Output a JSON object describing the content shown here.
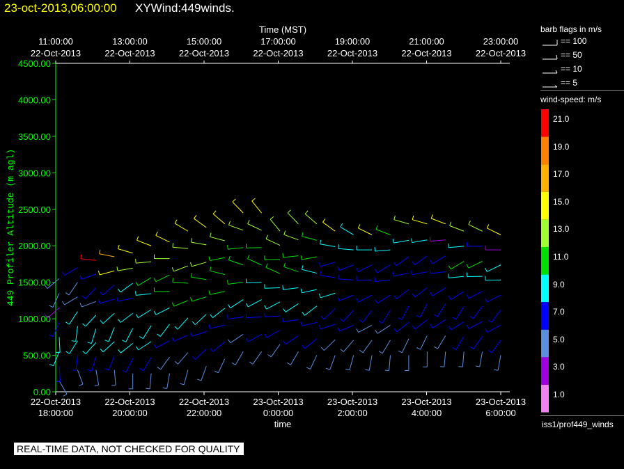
{
  "header": {
    "datetime": "23-oct-2013,06:00:00",
    "plot_name": "XYWind:449winds."
  },
  "banner": "REAL-TIME DATA, NOT CHECKED FOR QUALITY",
  "legend": {
    "flags_title": "barb flags in m/s",
    "flags": [
      {
        "label": "== 100",
        "speed": 100
      },
      {
        "label": "== 50",
        "speed": 50
      },
      {
        "label": "== 10",
        "speed": 10
      },
      {
        "label": "== 5",
        "speed": 5
      }
    ],
    "colorbar_title": "wind-speed: m/s",
    "colorbar": [
      {
        "label": "21.0",
        "color": "#ff0000"
      },
      {
        "label": "19.0",
        "color": "#ff8000"
      },
      {
        "label": "17.0",
        "color": "#ffb000"
      },
      {
        "label": "15.0",
        "color": "#ffff00"
      },
      {
        "label": "13.0",
        "color": "#a0ff30"
      },
      {
        "label": "11.0",
        "color": "#00e000"
      },
      {
        "label": "9.0",
        "color": "#00ffff"
      },
      {
        "label": "7.0",
        "color": "#0000ff"
      },
      {
        "label": "5.0",
        "color": "#5a8fe0"
      },
      {
        "label": "3.0",
        "color": "#a000e0"
      },
      {
        "label": "1.0",
        "color": "#ee82ee"
      }
    ],
    "source": "iss1/prof449_winds"
  },
  "chart_data": {
    "type": "scatter",
    "marker": "wind-barb",
    "xlabel_bottom": "time",
    "xlabel_top": "Time (MST)",
    "ylabel": "449 Profiler Altitude (m agl)",
    "ylim": [
      0,
      4500
    ],
    "yticks": [
      "0.00",
      "500.00",
      "1000.00",
      "1500.00",
      "2000.00",
      "2500.00",
      "3000.00",
      "3500.00",
      "4000.00",
      "4500.00"
    ],
    "xticks_bottom": [
      [
        "22-Oct-2013",
        "18:00:00"
      ],
      [
        "22-Oct-2013",
        "20:00:00"
      ],
      [
        "22-Oct-2013",
        "22:00:00"
      ],
      [
        "23-Oct-2013",
        "0:00:00"
      ],
      [
        "23-Oct-2013",
        "2:00:00"
      ],
      [
        "23-Oct-2013",
        "4:00:00"
      ],
      [
        "23-Oct-2013",
        "6:00:00"
      ]
    ],
    "xticks_top": [
      [
        "11:00:00",
        "22-Oct-2013"
      ],
      [
        "13:00:00",
        "22-Oct-2013"
      ],
      [
        "15:00:00",
        "22-Oct-2013"
      ],
      [
        "17:00:00",
        "22-Oct-2013"
      ],
      [
        "19:00:00",
        "22-Oct-2013"
      ],
      [
        "21:00:00",
        "22-Oct-2013"
      ],
      [
        "23:00:00",
        "22-Oct-2013"
      ]
    ],
    "profiles": [
      {
        "t": 0.0,
        "top": 1550,
        "low": 150,
        "dir": 150,
        "spd": [
          4,
          6,
          9,
          9,
          7,
          3,
          4,
          5
        ]
      },
      {
        "t": 0.5,
        "top": 1700,
        "low": 300,
        "dir": 160,
        "spd": [
          5,
          6,
          9,
          9,
          8,
          4,
          5,
          6
        ]
      },
      {
        "t": 1.0,
        "top": 1800,
        "low": 300,
        "dir": 170,
        "spd": [
          5,
          7,
          9,
          9,
          8,
          5,
          6,
          7,
          20
        ]
      },
      {
        "t": 1.5,
        "top": 1850,
        "low": 300,
        "dir": 175,
        "spd": [
          5,
          7,
          8,
          9,
          9,
          6,
          7,
          14,
          17
        ]
      },
      {
        "t": 2.0,
        "top": 1900,
        "low": 250,
        "dir": 180,
        "spd": [
          4,
          6,
          8,
          9,
          9,
          7,
          9,
          13,
          15
        ]
      },
      {
        "t": 2.5,
        "top": 2000,
        "low": 250,
        "dir": 185,
        "spd": [
          4,
          6,
          8,
          8,
          9,
          9,
          11,
          12,
          15
        ]
      },
      {
        "t": 3.0,
        "top": 2050,
        "low": 250,
        "dir": 190,
        "spd": [
          4,
          5,
          7,
          8,
          9,
          10,
          11,
          13,
          15
        ]
      },
      {
        "t": 3.5,
        "top": 2200,
        "low": 300,
        "dir": 195,
        "spd": [
          5,
          5,
          7,
          9,
          10,
          11,
          12,
          13,
          15
        ]
      },
      {
        "t": 4.0,
        "top": 2250,
        "low": 350,
        "dir": 200,
        "spd": [
          5,
          6,
          7,
          9,
          10,
          11,
          12,
          13,
          14
        ]
      },
      {
        "t": 4.5,
        "top": 2300,
        "low": 450,
        "dir": 205,
        "spd": [
          5,
          6,
          7,
          9,
          10,
          11,
          11,
          12,
          14
        ]
      },
      {
        "t": 5.0,
        "top": 2450,
        "low": 550,
        "dir": 210,
        "spd": [
          5,
          5,
          7,
          9,
          10,
          11,
          11,
          12,
          15
        ]
      },
      {
        "t": 5.5,
        "top": 2450,
        "low": 550,
        "dir": 215,
        "spd": [
          5,
          6,
          7,
          9,
          9,
          10,
          11,
          12,
          15
        ]
      },
      {
        "t": 6.0,
        "top": 2200,
        "low": 650,
        "dir": 215,
        "spd": [
          5,
          6,
          7,
          9,
          9,
          10,
          11,
          12,
          13
        ]
      },
      {
        "t": 6.5,
        "top": 2300,
        "low": 550,
        "dir": 210,
        "spd": [
          4,
          6,
          7,
          8,
          9,
          10,
          11,
          12,
          13
        ]
      },
      {
        "t": 7.0,
        "top": 2300,
        "low": 500,
        "dir": 205,
        "spd": [
          5,
          6,
          7,
          8,
          8,
          9,
          10,
          11,
          13
        ]
      },
      {
        "t": 7.5,
        "top": 2200,
        "low": 500,
        "dir": 200,
        "spd": [
          5,
          5,
          6,
          7,
          8,
          7,
          7,
          9,
          15
        ]
      },
      {
        "t": 8.0,
        "top": 2150,
        "low": 500,
        "dir": 195,
        "spd": [
          4,
          5,
          6,
          7,
          7,
          7,
          7,
          8,
          9
        ]
      },
      {
        "t": 8.5,
        "top": 2150,
        "low": 500,
        "dir": 190,
        "spd": [
          4,
          4,
          5,
          6,
          7,
          7,
          7,
          8,
          15
        ]
      },
      {
        "t": 9.0,
        "top": 2150,
        "low": 500,
        "dir": 185,
        "spd": [
          4,
          4,
          5,
          6,
          7,
          7,
          7,
          8,
          11
        ]
      },
      {
        "t": 9.5,
        "top": 2300,
        "low": 500,
        "dir": 180,
        "spd": [
          4,
          5,
          6,
          7,
          7,
          7,
          7,
          8,
          13
        ]
      },
      {
        "t": 10.0,
        "top": 2300,
        "low": 550,
        "dir": 180,
        "spd": [
          4,
          5,
          6,
          7,
          7,
          7,
          7,
          8,
          15
        ]
      },
      {
        "t": 10.5,
        "top": 2300,
        "low": 550,
        "dir": 185,
        "spd": [
          5,
          5,
          6,
          7,
          7,
          7,
          7,
          3,
          15
        ]
      },
      {
        "t": 11.0,
        "top": 2200,
        "low": 550,
        "dir": 185,
        "spd": [
          5,
          6,
          6,
          7,
          7,
          9,
          11,
          8,
          13
        ]
      },
      {
        "t": 11.5,
        "top": 2200,
        "low": 550,
        "dir": 190,
        "spd": [
          5,
          6,
          6,
          7,
          7,
          8,
          11,
          7,
          13
        ]
      },
      {
        "t": 12.0,
        "top": 2150,
        "low": 500,
        "dir": 190,
        "spd": [
          5,
          6,
          6,
          7,
          7,
          8,
          9,
          3,
          15
        ]
      }
    ]
  }
}
